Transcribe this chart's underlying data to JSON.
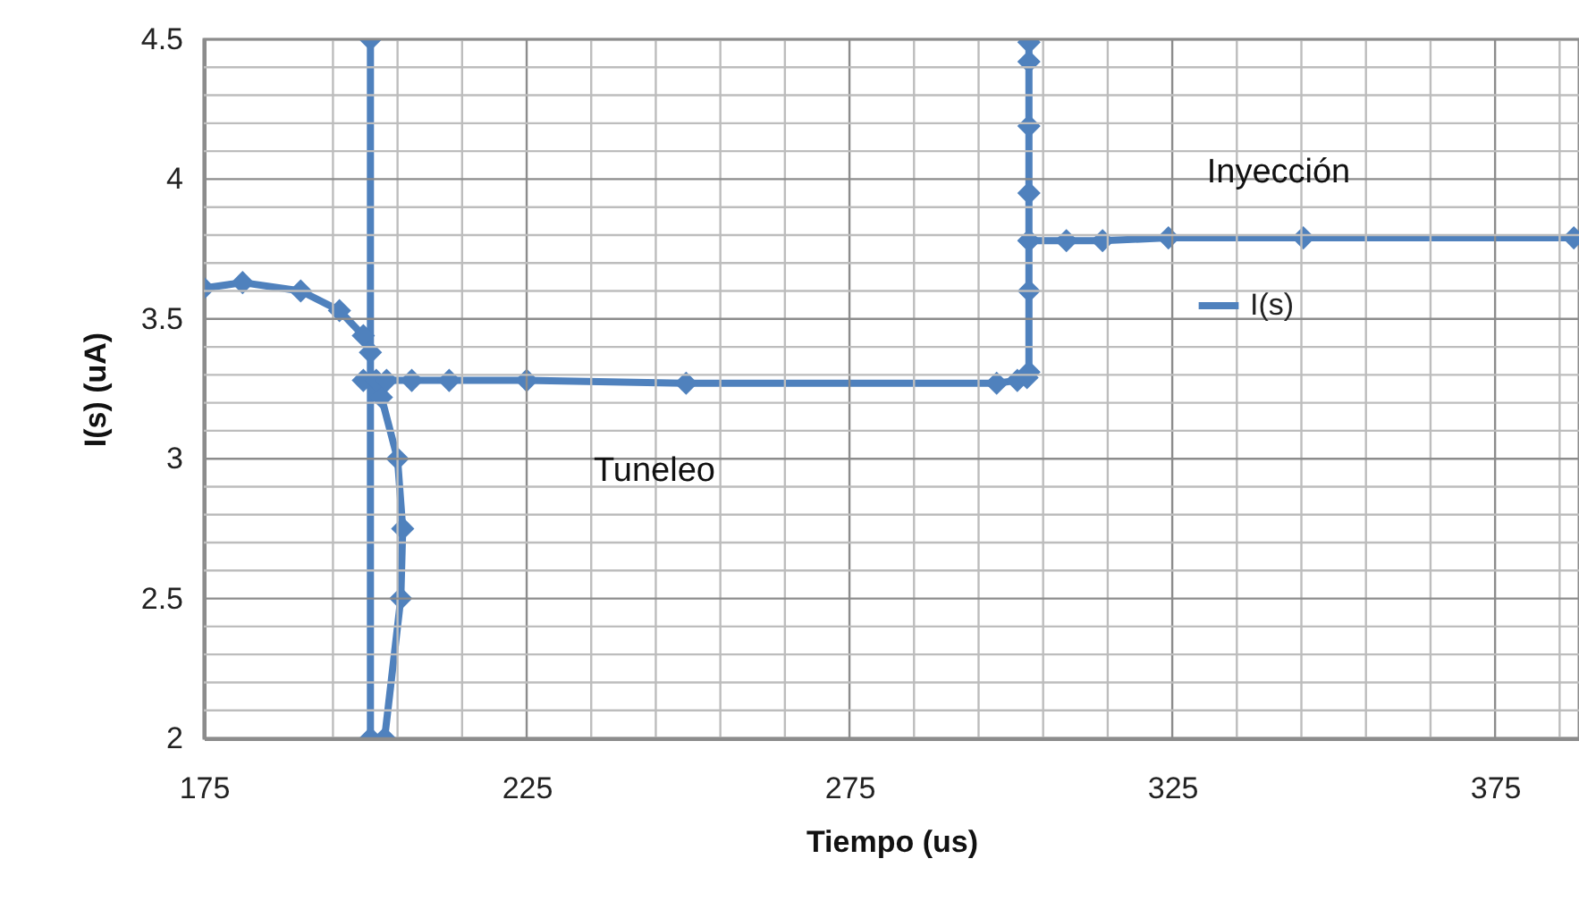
{
  "chart_data": {
    "type": "line",
    "xlabel": "Tiempo (us)",
    "ylabel": "I(s) (uA)",
    "xlim": [
      175,
      388
    ],
    "ylim": [
      2,
      4.5
    ],
    "xticks": [
      175,
      {
        "value": 195,
        "label": null
      },
      {
        "value": 205,
        "label": null
      },
      {
        "value": 215,
        "label": null
      },
      225,
      {
        "value": 235,
        "label": null
      },
      {
        "value": 245,
        "label": null
      },
      {
        "value": 255,
        "label": null
      },
      {
        "value": 265,
        "label": null
      },
      275,
      {
        "value": 285,
        "label": null
      },
      {
        "value": 295,
        "label": null
      },
      {
        "value": 305,
        "label": null
      },
      {
        "value": 315,
        "label": null
      },
      325,
      {
        "value": 335,
        "label": null
      },
      {
        "value": 345,
        "label": null
      },
      {
        "value": 355,
        "label": null
      },
      {
        "value": 365,
        "label": null
      },
      375,
      {
        "value": 385,
        "label": null
      }
    ],
    "yticks": [
      2,
      {
        "value": 2.1,
        "label": null
      },
      {
        "value": 2.2,
        "label": null
      },
      {
        "value": 2.3,
        "label": null
      },
      {
        "value": 2.4,
        "label": null
      },
      2.5,
      {
        "value": 2.6,
        "label": null
      },
      {
        "value": 2.7,
        "label": null
      },
      {
        "value": 2.8,
        "label": null
      },
      {
        "value": 2.9,
        "label": null
      },
      3,
      {
        "value": 3.1,
        "label": null
      },
      {
        "value": 3.2,
        "label": null
      },
      {
        "value": 3.3,
        "label": null
      },
      {
        "value": 3.4,
        "label": null
      },
      3.5,
      {
        "value": 3.6,
        "label": null
      },
      {
        "value": 3.7,
        "label": null
      },
      {
        "value": 3.8,
        "label": null
      },
      {
        "value": 3.9,
        "label": null
      },
      4,
      {
        "value": 4.1,
        "label": null
      },
      {
        "value": 4.2,
        "label": null
      },
      {
        "value": 4.3,
        "label": null
      },
      {
        "value": 4.4,
        "label": null
      },
      4.5
    ],
    "grid": true,
    "legend": "right",
    "marker": "diamond",
    "line_style": "solid",
    "annotations": [
      "Tuneleo",
      "Inyección"
    ],
    "series": [
      {
        "name": "I(s)",
        "color": "#4f81bd",
        "x": [
          175,
          181,
          190,
          196,
          199.7,
          200.8,
          200.8,
          200.8,
          203,
          205.5,
          205.8,
          205,
          202.5,
          199.7,
          201.7,
          203.3,
          207.2,
          213,
          225,
          249.7,
          297.8,
          301,
          302.5,
          302.8,
          302.8,
          302.8,
          302.8,
          302.8,
          302.8,
          302.8,
          302.8,
          308.6,
          314.2,
          324.4,
          345.3,
          387.2
        ],
        "values": [
          3.61,
          3.63,
          3.6,
          3.53,
          3.44,
          3.38,
          4.5,
          2.0,
          2.0,
          2.5,
          2.75,
          3.0,
          3.22,
          3.28,
          3.28,
          3.28,
          3.28,
          3.28,
          3.28,
          3.27,
          3.27,
          3.28,
          3.29,
          3.31,
          3.6,
          3.78,
          3.95,
          4.19,
          4.42,
          4.49,
          3.78,
          3.78,
          3.78,
          3.79,
          3.79,
          3.79
        ]
      }
    ]
  }
}
